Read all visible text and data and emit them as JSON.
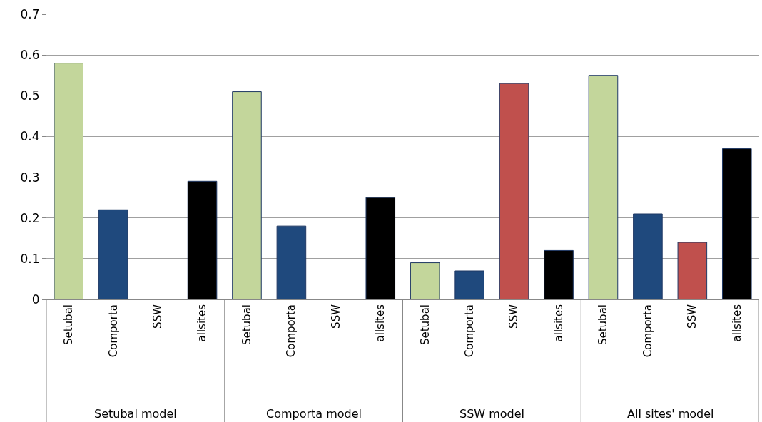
{
  "chart_data": {
    "type": "bar",
    "categories": [
      "Setubal",
      "Comporta",
      "SSW",
      "allsites",
      "Setubal",
      "Comporta",
      "SSW",
      "allsites",
      "Setubal",
      "Comporta",
      "SSW",
      "allsites",
      "Setubal",
      "Comporta",
      "SSW",
      "allsites"
    ],
    "values": [
      0.58,
      0.22,
      null,
      0.29,
      0.51,
      0.18,
      null,
      0.25,
      0.09,
      0.07,
      0.53,
      0.12,
      0.55,
      0.21,
      0.14,
      0.37
    ],
    "colors": [
      "#c3d69b",
      "#1f497d",
      "#c0504d",
      "#000000",
      "#c3d69b",
      "#1f497d",
      "#c0504d",
      "#000000",
      "#c3d69b",
      "#1f497d",
      "#c0504d",
      "#000000",
      "#c3d69b",
      "#1f497d",
      "#c0504d",
      "#000000"
    ],
    "annotations": [
      "Setubal model",
      "Comporta model",
      "SSW model",
      "All sites' model"
    ],
    "ylim": [
      0,
      0.7
    ],
    "yticks": [
      0,
      0.1,
      0.2,
      0.3,
      0.4,
      0.5,
      0.6,
      0.7
    ],
    "grid": "y"
  }
}
